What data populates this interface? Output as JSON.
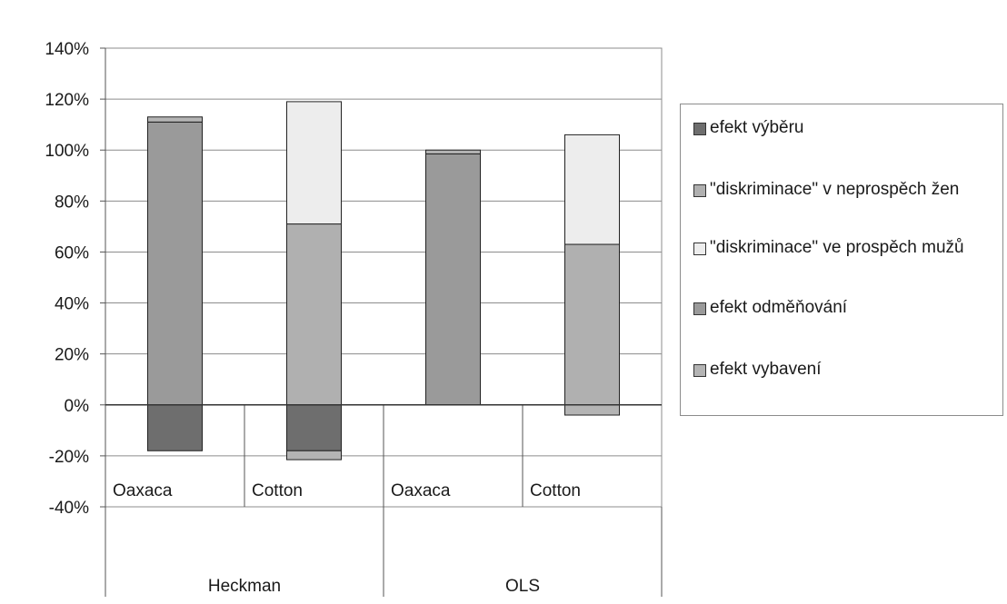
{
  "chart_data": {
    "type": "bar",
    "stacked": true,
    "ylim": [
      -40,
      140
    ],
    "yticks": [
      -40,
      -20,
      0,
      20,
      40,
      60,
      80,
      100,
      120,
      140
    ],
    "ytick_labels": [
      "-40%",
      "-20%",
      "0%",
      "20%",
      "40%",
      "60%",
      "80%",
      "100%",
      "120%",
      "140%"
    ],
    "categories": [
      "Oaxaca",
      "Cotton",
      "Oaxaca",
      "Cotton"
    ],
    "groups": [
      {
        "label": "Heckman",
        "categories": [
          "Oaxaca",
          "Cotton"
        ]
      },
      {
        "label": "OLS",
        "categories": [
          "Oaxaca",
          "Cotton"
        ]
      }
    ],
    "legend_position": "right",
    "grid": true,
    "series": [
      {
        "name": "efekt výběru",
        "color": "#6e6e6e",
        "values": [
          -18,
          -18,
          0,
          0
        ]
      },
      {
        "name": "\"diskriminace\" v neprospěch žen",
        "color": "#b0b0b0",
        "values": [
          0,
          71,
          0,
          63
        ]
      },
      {
        "name": "\"diskriminace\" ve prospěch mužů",
        "color": "#ededed",
        "values": [
          0,
          48,
          0,
          43
        ]
      },
      {
        "name": "efekt odměňování",
        "color": "#9a9a9a",
        "values": [
          111,
          0,
          98.5,
          0
        ]
      },
      {
        "name": "efekt vybavení",
        "color": "#b4b4b4",
        "values": [
          2,
          -3.5,
          1.5,
          -4
        ]
      }
    ]
  }
}
